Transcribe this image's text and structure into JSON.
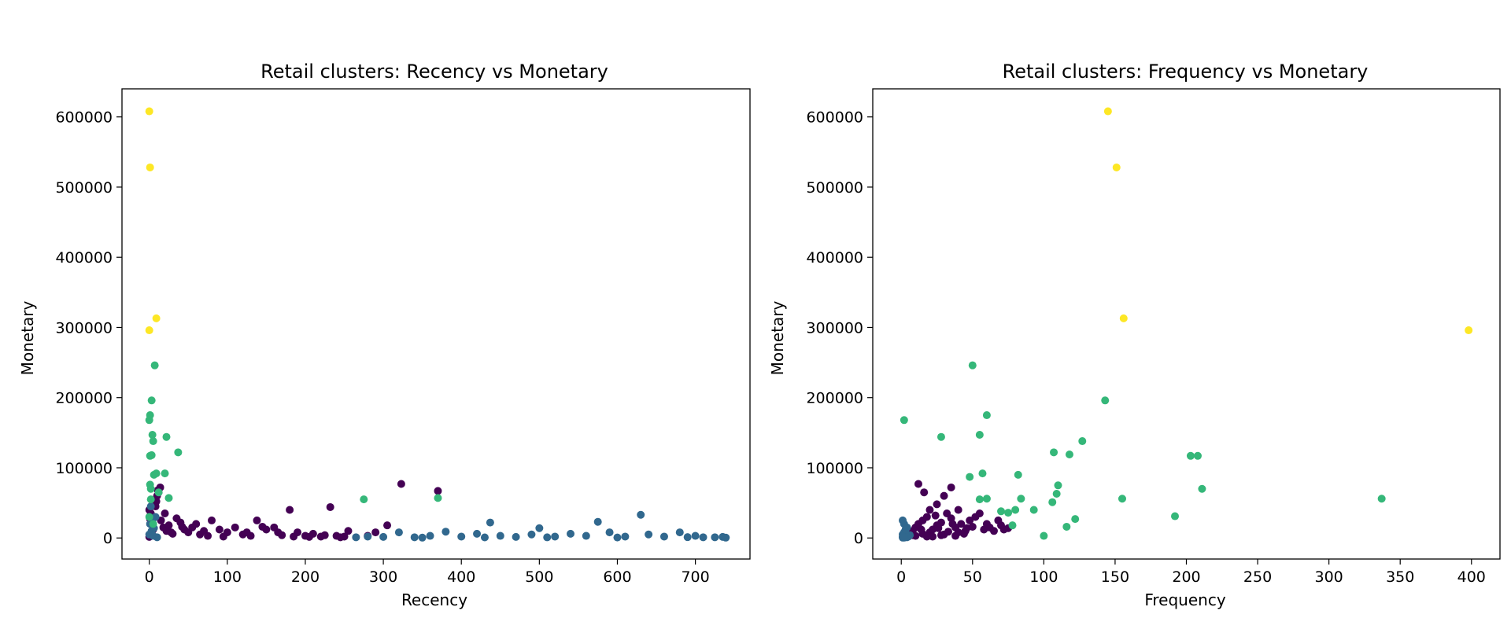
{
  "figure": {
    "background": "#ffffff"
  },
  "chart_data": [
    {
      "type": "scatter",
      "title": "Retail clusters: Recency vs Monetary",
      "xlabel": "Recency",
      "ylabel": "Monetary",
      "xlim": [
        -35,
        770
      ],
      "ylim": [
        -30000,
        640000
      ],
      "xticks": [
        0,
        100,
        200,
        300,
        400,
        500,
        600,
        700
      ],
      "yticks": [
        0,
        100000,
        200000,
        300000,
        400000,
        500000,
        600000
      ],
      "grid": false,
      "legend": "none",
      "colormap": "viridis",
      "series": [
        {
          "color": "#440154",
          "points": [
            [
              0,
              1500
            ],
            [
              2,
              4000
            ],
            [
              3,
              8000
            ],
            [
              5,
              12000
            ],
            [
              4,
              20000
            ],
            [
              1,
              27000
            ],
            [
              6,
              30000
            ],
            [
              2,
              35000
            ],
            [
              0,
              40000
            ],
            [
              8,
              45000
            ],
            [
              10,
              60000
            ],
            [
              12,
              65000
            ],
            [
              11,
              68000
            ],
            [
              14,
              72000
            ],
            [
              9,
              52000
            ],
            [
              15,
              25000
            ],
            [
              18,
              15000
            ],
            [
              22,
              10000
            ],
            [
              25,
              18000
            ],
            [
              30,
              6000
            ],
            [
              35,
              28000
            ],
            [
              40,
              22000
            ],
            [
              45,
              12000
            ],
            [
              50,
              8000
            ],
            [
              55,
              15000
            ],
            [
              60,
              20000
            ],
            [
              65,
              5000
            ],
            [
              70,
              10000
            ],
            [
              80,
              25000
            ],
            [
              90,
              12000
            ],
            [
              100,
              8000
            ],
            [
              110,
              15000
            ],
            [
              120,
              5000
            ],
            [
              130,
              3000
            ],
            [
              138,
              25000
            ],
            [
              150,
              12000
            ],
            [
              160,
              15000
            ],
            [
              170,
              4000
            ],
            [
              180,
              40000
            ],
            [
              190,
              8000
            ],
            [
              200,
              3000
            ],
            [
              210,
              6000
            ],
            [
              220,
              2000
            ],
            [
              232,
              44000
            ],
            [
              240,
              3000
            ],
            [
              250,
              2000
            ],
            [
              255,
              10000
            ],
            [
              280,
              3000
            ],
            [
              290,
              8000
            ],
            [
              305,
              18000
            ],
            [
              323,
              77000
            ],
            [
              370,
              67000
            ],
            [
              20,
              35000
            ],
            [
              28,
              8000
            ],
            [
              42,
              16000
            ],
            [
              75,
              3000
            ],
            [
              95,
              2000
            ],
            [
              125,
              8000
            ],
            [
              145,
              16000
            ],
            [
              165,
              8000
            ],
            [
              185,
              2000
            ],
            [
              205,
              1500
            ],
            [
              225,
              4000
            ],
            [
              245,
              1000
            ]
          ]
        },
        {
          "color": "#31688e",
          "points": [
            [
              265,
              1000
            ],
            [
              280,
              2000
            ],
            [
              300,
              1500
            ],
            [
              320,
              8000
            ],
            [
              340,
              1000
            ],
            [
              360,
              3000
            ],
            [
              380,
              9000
            ],
            [
              400,
              2000
            ],
            [
              420,
              6000
            ],
            [
              437,
              22000
            ],
            [
              450,
              3000
            ],
            [
              470,
              1500
            ],
            [
              490,
              5000
            ],
            [
              500,
              14000
            ],
            [
              520,
              2000
            ],
            [
              540,
              6000
            ],
            [
              560,
              3000
            ],
            [
              575,
              23000
            ],
            [
              590,
              8000
            ],
            [
              610,
              2000
            ],
            [
              630,
              33000
            ],
            [
              640,
              5000
            ],
            [
              660,
              2000
            ],
            [
              680,
              8000
            ],
            [
              700,
              3000
            ],
            [
              710,
              1000
            ],
            [
              725,
              1000
            ],
            [
              735,
              1500
            ],
            [
              739,
              500
            ],
            [
              350,
              500
            ],
            [
              430,
              800
            ],
            [
              510,
              900
            ],
            [
              600,
              700
            ],
            [
              690,
              1200
            ],
            [
              0,
              5000
            ],
            [
              3,
              10000
            ],
            [
              6,
              14000
            ],
            [
              1,
              20000
            ],
            [
              4,
              25000
            ],
            [
              8,
              30000
            ],
            [
              2,
              45000
            ],
            [
              5,
              3000
            ],
            [
              10,
              1000
            ]
          ]
        },
        {
          "color": "#35b779",
          "points": [
            [
              7,
              246000
            ],
            [
              3,
              196000
            ],
            [
              1,
              175000
            ],
            [
              0,
              168000
            ],
            [
              4,
              147000
            ],
            [
              5,
              138000
            ],
            [
              22,
              144000
            ],
            [
              37,
              122000
            ],
            [
              1,
              117000
            ],
            [
              3,
              118000
            ],
            [
              6,
              90000
            ],
            [
              9,
              92000
            ],
            [
              20,
              92000
            ],
            [
              1,
              76000
            ],
            [
              2,
              70000
            ],
            [
              12,
              65000
            ],
            [
              2,
              55000
            ],
            [
              25,
              57000
            ],
            [
              275,
              55000
            ],
            [
              370,
              57000
            ],
            [
              0,
              30000
            ],
            [
              5,
              20000
            ]
          ]
        },
        {
          "color": "#fde725",
          "points": [
            [
              0,
              608000
            ],
            [
              1,
              528000
            ],
            [
              9,
              313000
            ],
            [
              0,
              296000
            ]
          ]
        }
      ]
    },
    {
      "type": "scatter",
      "title": "Retail clusters: Frequency vs Monetary",
      "xlabel": "Frequency",
      "ylabel": "Monetary",
      "xlim": [
        -20,
        420
      ],
      "ylim": [
        -30000,
        640000
      ],
      "xticks": [
        0,
        50,
        100,
        150,
        200,
        250,
        300,
        350,
        400
      ],
      "yticks": [
        0,
        100000,
        200000,
        300000,
        400000,
        500000,
        600000
      ],
      "grid": false,
      "legend": "none",
      "colormap": "viridis",
      "series": [
        {
          "color": "#440154",
          "points": [
            [
              5,
              5000
            ],
            [
              8,
              10000
            ],
            [
              10,
              15000
            ],
            [
              12,
              20000
            ],
            [
              15,
              25000
            ],
            [
              18,
              30000
            ],
            [
              20,
              8000
            ],
            [
              22,
              12000
            ],
            [
              25,
              18000
            ],
            [
              28,
              22000
            ],
            [
              30,
              5000
            ],
            [
              32,
              35000
            ],
            [
              35,
              28000
            ],
            [
              38,
              15000
            ],
            [
              40,
              40000
            ],
            [
              42,
              20000
            ],
            [
              45,
              10000
            ],
            [
              48,
              25000
            ],
            [
              52,
              30000
            ],
            [
              55,
              35000
            ],
            [
              58,
              12000
            ],
            [
              60,
              20000
            ],
            [
              62,
              15000
            ],
            [
              65,
              10000
            ],
            [
              68,
              25000
            ],
            [
              70,
              18000
            ],
            [
              72,
              12000
            ],
            [
              75,
              14000
            ],
            [
              12,
              77000
            ],
            [
              16,
              65000
            ],
            [
              35,
              72000
            ],
            [
              25,
              48000
            ],
            [
              30,
              60000
            ],
            [
              20,
              40000
            ],
            [
              10,
              3000
            ],
            [
              15,
              6000
            ],
            [
              22,
              2000
            ],
            [
              28,
              4000
            ],
            [
              33,
              9000
            ],
            [
              38,
              3000
            ],
            [
              44,
              6000
            ],
            [
              50,
              16000
            ],
            [
              14,
              12000
            ],
            [
              24,
              32000
            ],
            [
              36,
              20000
            ],
            [
              46,
              14000
            ],
            [
              18,
              2000
            ],
            [
              26,
              14000
            ],
            [
              40,
              8000
            ],
            [
              8,
              4000
            ]
          ]
        },
        {
          "color": "#31688e",
          "points": [
            [
              1,
              500
            ],
            [
              2,
              1500
            ],
            [
              3,
              3000
            ],
            [
              1,
              5000
            ],
            [
              2,
              8000
            ],
            [
              3,
              12000
            ],
            [
              4,
              15000
            ],
            [
              5,
              2000
            ],
            [
              6,
              4000
            ],
            [
              2,
              20000
            ],
            [
              1,
              25000
            ],
            [
              3,
              6000
            ],
            [
              4,
              1000
            ],
            [
              1,
              2000
            ],
            [
              2,
              500
            ]
          ]
        },
        {
          "color": "#35b779",
          "points": [
            [
              2,
              168000
            ],
            [
              28,
              144000
            ],
            [
              50,
              246000
            ],
            [
              55,
              147000
            ],
            [
              60,
              175000
            ],
            [
              143,
              196000
            ],
            [
              107,
              122000
            ],
            [
              118,
              119000
            ],
            [
              127,
              138000
            ],
            [
              203,
              117000
            ],
            [
              208,
              117000
            ],
            [
              211,
              70000
            ],
            [
              110,
              75000
            ],
            [
              109,
              63000
            ],
            [
              106,
              51000
            ],
            [
              82,
              90000
            ],
            [
              57,
              92000
            ],
            [
              155,
              56000
            ],
            [
              192,
              31000
            ],
            [
              337,
              56000
            ],
            [
              122,
              27000
            ],
            [
              116,
              16000
            ],
            [
              100,
              3000
            ],
            [
              75,
              36000
            ],
            [
              80,
              40000
            ],
            [
              70,
              38000
            ],
            [
              78,
              18000
            ],
            [
              84,
              56000
            ],
            [
              93,
              40000
            ],
            [
              48,
              87000
            ],
            [
              55,
              55000
            ],
            [
              60,
              56000
            ]
          ]
        },
        {
          "color": "#fde725",
          "points": [
            [
              145,
              608000
            ],
            [
              151,
              528000
            ],
            [
              156,
              313000
            ],
            [
              398,
              296000
            ]
          ]
        }
      ]
    }
  ]
}
